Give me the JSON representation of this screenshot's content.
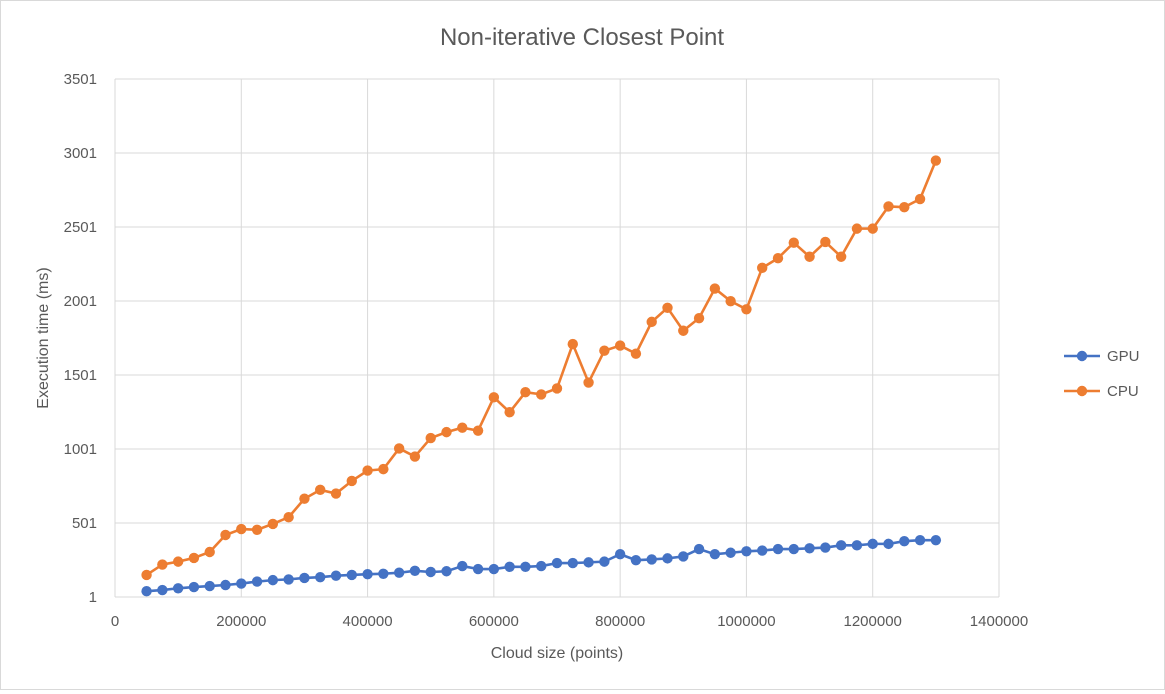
{
  "chart_data": {
    "type": "line",
    "title": "Non-iterative Closest Point",
    "xlabel": "Cloud size (points)",
    "ylabel": "Execution time (ms)",
    "xlim": [
      0,
      1400000
    ],
    "ylim": [
      1,
      3501
    ],
    "xticks": [
      "0",
      "200000",
      "400000",
      "600000",
      "800000",
      "1000000",
      "1200000",
      "1400000"
    ],
    "yticks": [
      "1",
      "501",
      "1001",
      "1501",
      "2001",
      "2501",
      "3001",
      "3501"
    ],
    "grid": true,
    "legend_position": "right",
    "x": [
      50000,
      75000,
      100000,
      125000,
      150000,
      175000,
      200000,
      225000,
      250000,
      275000,
      300000,
      325000,
      350000,
      375000,
      400000,
      425000,
      450000,
      475000,
      500000,
      525000,
      550000,
      575000,
      600000,
      625000,
      650000,
      675000,
      700000,
      725000,
      750000,
      775000,
      800000,
      825000,
      850000,
      875000,
      900000,
      925000,
      950000,
      975000,
      1000000,
      1025000,
      1050000,
      1075000,
      1100000,
      1125000,
      1150000,
      1175000,
      1200000,
      1225000,
      1250000,
      1275000,
      1300000
    ],
    "series": [
      {
        "name": "GPU",
        "color": "#4472c4",
        "values": [
          40,
          48,
          60,
          68,
          75,
          82,
          92,
          105,
          115,
          120,
          130,
          135,
          145,
          150,
          155,
          158,
          165,
          178,
          170,
          175,
          210,
          190,
          190,
          205,
          205,
          210,
          230,
          230,
          235,
          240,
          290,
          250,
          255,
          262,
          275,
          325,
          290,
          300,
          310,
          315,
          325,
          325,
          330,
          335,
          350,
          350,
          360,
          360,
          378,
          385,
          385
        ]
      },
      {
        "name": "CPU",
        "color": "#ed7d31",
        "values": [
          150,
          220,
          240,
          265,
          305,
          420,
          460,
          455,
          495,
          540,
          665,
          725,
          700,
          785,
          855,
          865,
          1005,
          950,
          1075,
          1115,
          1145,
          1125,
          1350,
          1250,
          1385,
          1370,
          1410,
          1710,
          1450,
          1665,
          1700,
          1645,
          1860,
          1955,
          1800,
          1885,
          2085,
          2000,
          1945,
          2225,
          2290,
          2395,
          2300,
          2400,
          2300,
          2490,
          2490,
          2640,
          2635,
          2690,
          2950
        ]
      }
    ]
  }
}
